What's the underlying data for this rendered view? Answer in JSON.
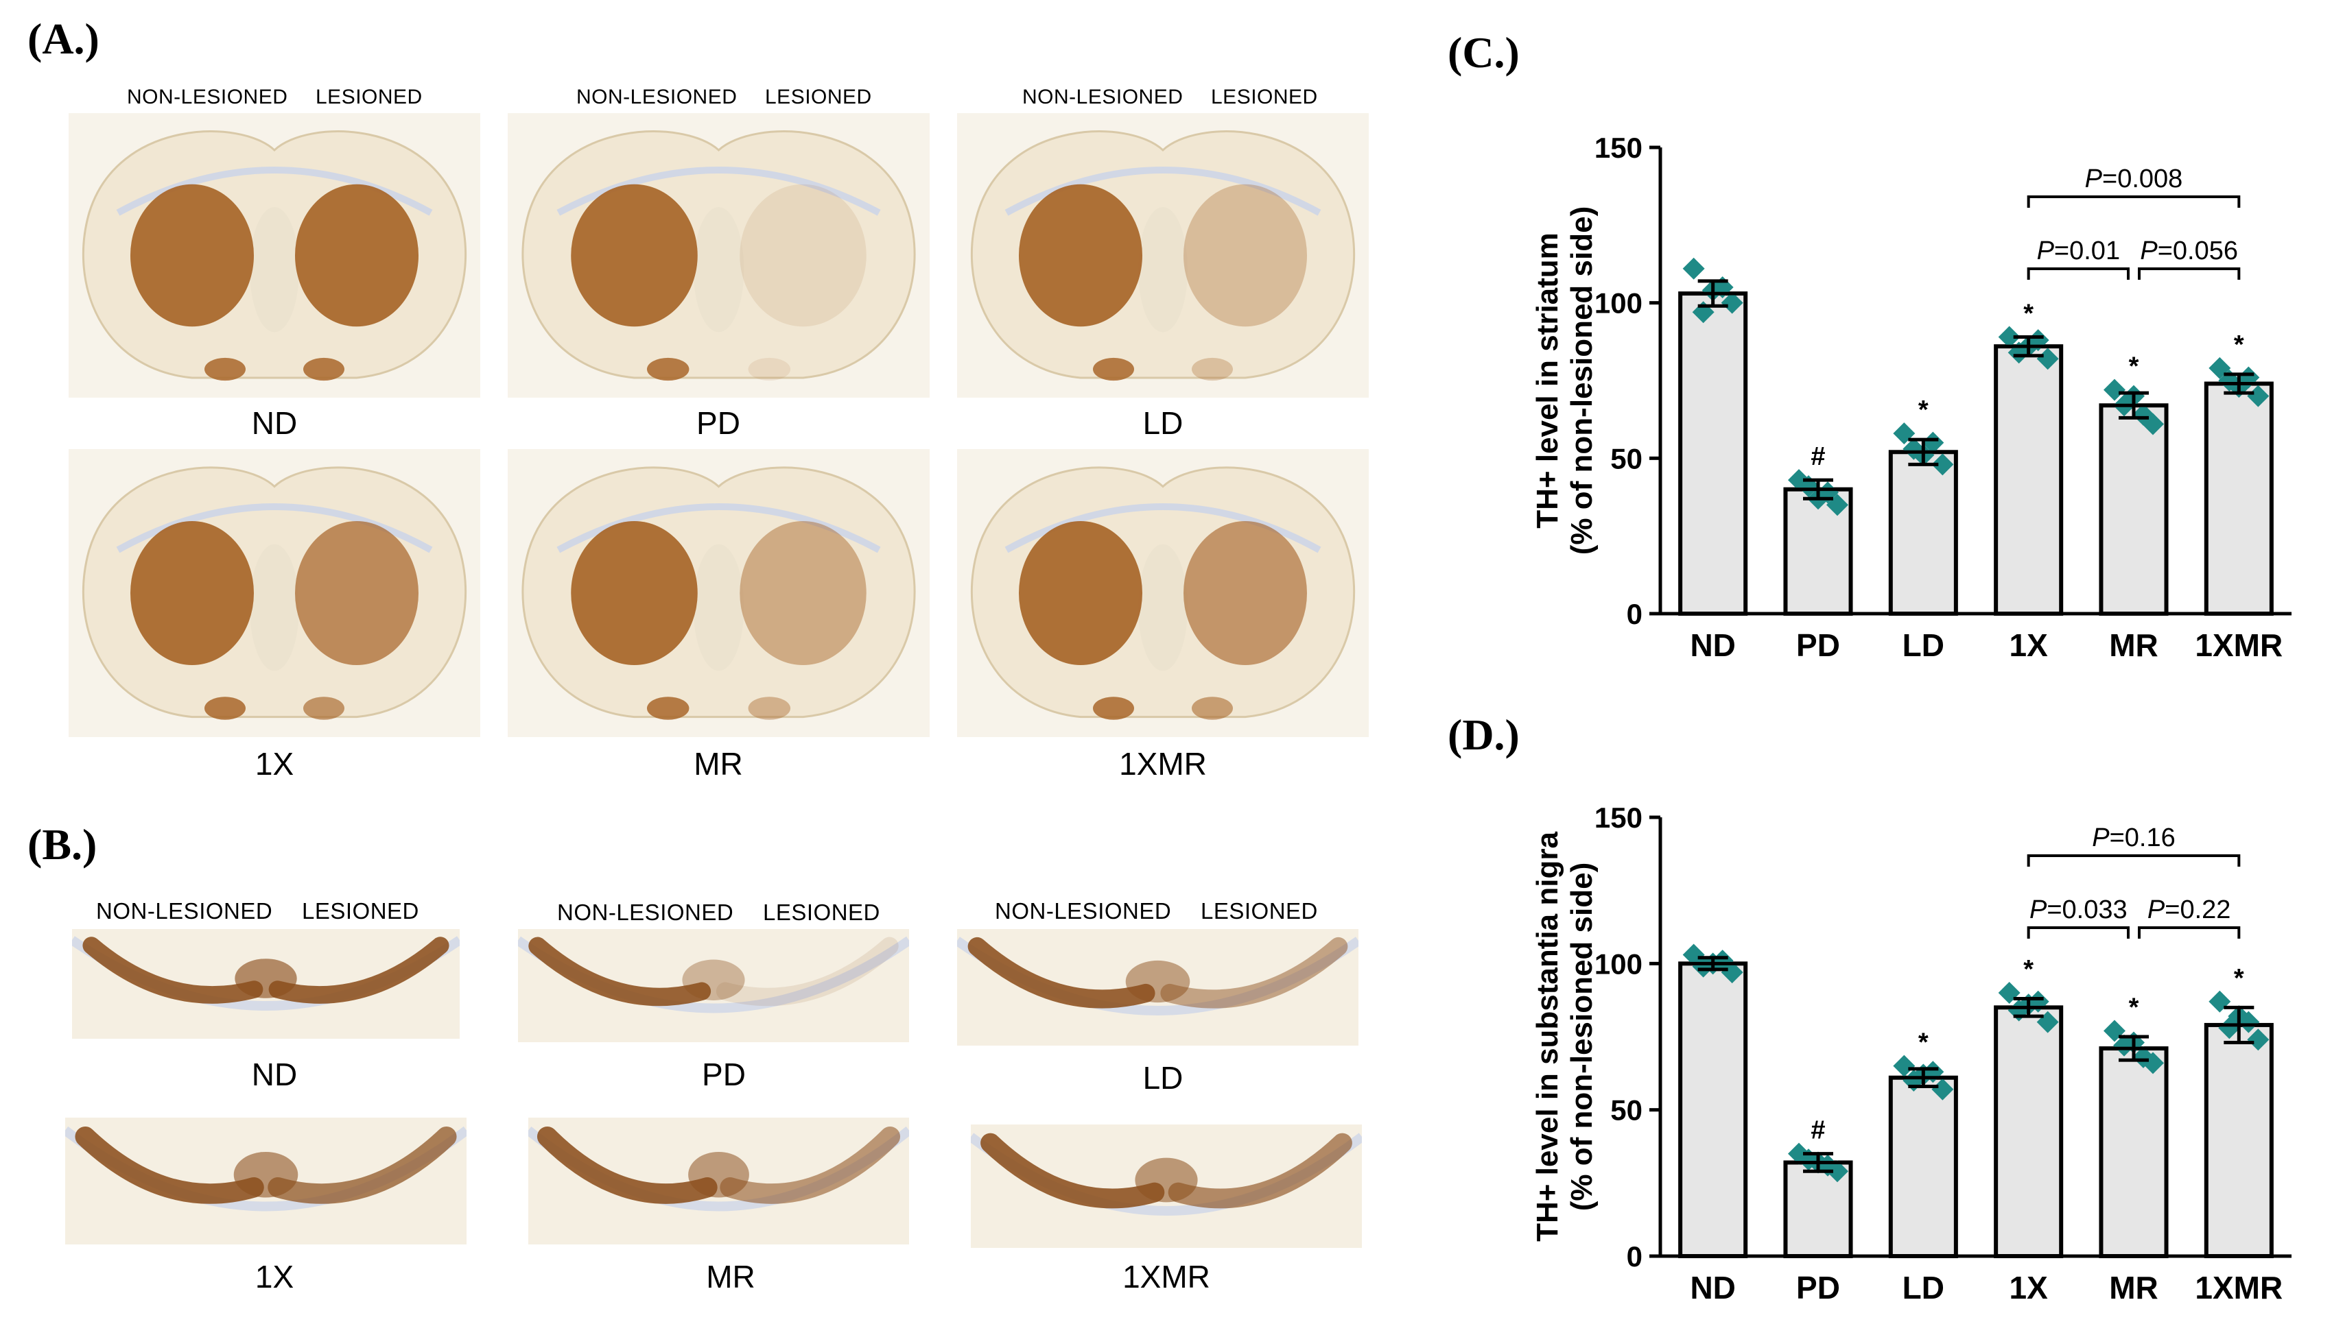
{
  "panel_labels": {
    "a": "(A.)",
    "b": "(B.)",
    "c": "(C.)",
    "d": "(D.)"
  },
  "side_labels": {
    "left": "NON-LESIONED",
    "right": "LESIONED"
  },
  "groups": [
    "ND",
    "PD",
    "LD",
    "1X",
    "MR",
    "1XMR"
  ],
  "panel_a_captions": [
    "ND",
    "PD",
    "LD",
    "1X",
    "MR",
    "1XMR"
  ],
  "panel_b_captions": [
    "ND",
    "PD",
    "LD",
    "1X",
    "MR",
    "1XMR"
  ],
  "colors": {
    "bar_fill": "#e6e6e6",
    "bar_stroke": "#000000",
    "point": "#1f8a86",
    "stain": "#a8662a",
    "tissue": "#f1e7d3",
    "background_stain": "#c9d3ea"
  },
  "chart_data": [
    {
      "panel": "C",
      "type": "bar",
      "categories": [
        "ND",
        "PD",
        "LD",
        "1X",
        "MR",
        "1XMR"
      ],
      "values": [
        103,
        40,
        52,
        86,
        67,
        74
      ],
      "sem": [
        4,
        3,
        4,
        3,
        4,
        3
      ],
      "points": [
        [
          111,
          104,
          100,
          97,
          105
        ],
        [
          43,
          37,
          35,
          41,
          39
        ],
        [
          58,
          51,
          48,
          53,
          55
        ],
        [
          89,
          86,
          82,
          84,
          88
        ],
        [
          72,
          70,
          61,
          67,
          64
        ],
        [
          79,
          73,
          70,
          75,
          76
        ]
      ],
      "marks": [
        "",
        "#",
        "*",
        "*",
        "*",
        "*"
      ],
      "ylabel": "TH+ level in striatum (% of non-lesioned side)",
      "ylabel_line1": "TH+ level in striatum",
      "ylabel_line2": "(% of non-lesioned side)",
      "ylim": [
        0,
        150
      ],
      "yticks": [
        0,
        50,
        100,
        150
      ],
      "comparisons": [
        {
          "from": "1X",
          "to": "1XMR",
          "p_italic": "P",
          "value": "=0.008"
        },
        {
          "from": "1X",
          "to": "MR",
          "p_italic": "P",
          "value": "=0.01"
        },
        {
          "from": "MR",
          "to": "1XMR",
          "p_italic": "P",
          "value": "=0.056"
        }
      ]
    },
    {
      "panel": "D",
      "type": "bar",
      "categories": [
        "ND",
        "PD",
        "LD",
        "1X",
        "MR",
        "1XMR"
      ],
      "values": [
        100,
        32,
        61,
        85,
        71,
        79
      ],
      "sem": [
        2,
        3,
        3,
        3,
        4,
        6
      ],
      "points": [
        [
          103,
          100,
          97,
          99,
          101
        ],
        [
          35,
          32,
          29,
          33,
          31
        ],
        [
          65,
          62,
          57,
          60,
          63
        ],
        [
          90,
          86,
          80,
          84,
          87
        ],
        [
          77,
          73,
          66,
          72,
          68
        ],
        [
          87,
          82,
          74,
          78,
          80
        ]
      ],
      "marks": [
        "",
        "#",
        "*",
        "*",
        "*",
        "*"
      ],
      "ylabel": "TH+ level in substantia nigra (% of non-lesioned side)",
      "ylabel_line1": "TH+ level in substantia nigra",
      "ylabel_line2": "(% of non-lesioned side)",
      "ylim": [
        0,
        150
      ],
      "yticks": [
        0,
        50,
        100,
        150
      ],
      "comparisons": [
        {
          "from": "1X",
          "to": "1XMR",
          "p_italic": "P",
          "value": "=0.16"
        },
        {
          "from": "1X",
          "to": "MR",
          "p_italic": "P",
          "value": "=0.033"
        },
        {
          "from": "MR",
          "to": "1XMR",
          "p_italic": "P",
          "value": "=0.22"
        }
      ]
    }
  ]
}
